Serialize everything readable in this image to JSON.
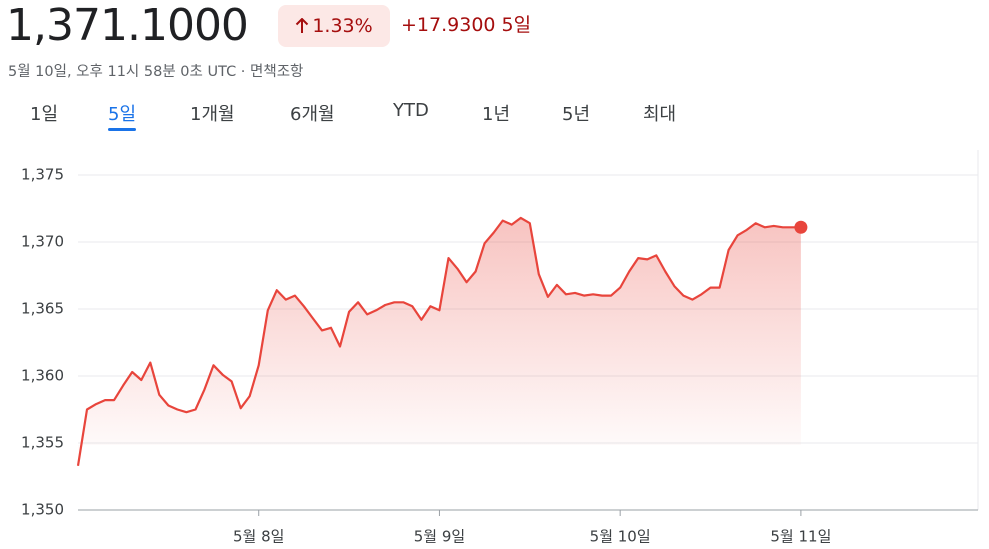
{
  "header": {
    "price": "1,371.1000",
    "change_percent": "1.33%",
    "change_absolute": "+17.9300",
    "period": "5일",
    "timestamp": "5월 10일, 오후 11시 58분 0초 UTC · 면책조항",
    "tabs": [
      "1일",
      "5일",
      "1개월",
      "6개월",
      "YTD",
      "1년",
      "5년",
      "최대"
    ],
    "selected_tab": 1
  },
  "chart_data": {
    "type": "line",
    "color": "#e8453c",
    "grid": true,
    "x": [
      0,
      0.05,
      0.1,
      0.15,
      0.2,
      0.25,
      0.3,
      0.35,
      0.4,
      0.45,
      0.5,
      0.55,
      0.6,
      0.65,
      0.7,
      0.75,
      0.8,
      0.85,
      0.9,
      0.95,
      1,
      1.05,
      1.1,
      1.15,
      1.2,
      1.25,
      1.3,
      1.35,
      1.4,
      1.45,
      1.5,
      1.55,
      1.6,
      1.65,
      1.7,
      1.75,
      1.8,
      1.85,
      1.9,
      1.95,
      2,
      2.05,
      2.1,
      2.15,
      2.2,
      2.25,
      2.3,
      2.35,
      2.4,
      2.45,
      2.5,
      2.55,
      2.6,
      2.65,
      2.7,
      2.75,
      2.8,
      2.85,
      2.9,
      2.95,
      3,
      3.05,
      3.1,
      3.15,
      3.2,
      3.25,
      3.3,
      3.35,
      3.4,
      3.45,
      3.5,
      3.55,
      3.6,
      3.65,
      3.7,
      3.75,
      3.8,
      3.85,
      3.9,
      3.95,
      4
    ],
    "values": [
      1353.3,
      1357.5,
      1357.9,
      1358.2,
      1358.2,
      1359.3,
      1360.3,
      1359.7,
      1361.0,
      1358.6,
      1357.8,
      1357.5,
      1357.3,
      1357.5,
      1359.0,
      1360.8,
      1360.1,
      1359.6,
      1357.6,
      1358.5,
      1360.8,
      1364.9,
      1366.4,
      1365.7,
      1366.0,
      1365.2,
      1364.3,
      1363.4,
      1363.6,
      1362.2,
      1364.8,
      1365.5,
      1364.6,
      1364.9,
      1365.3,
      1365.5,
      1365.5,
      1365.2,
      1364.2,
      1365.2,
      1364.9,
      1368.8,
      1368.0,
      1367.0,
      1367.8,
      1369.9,
      1370.7,
      1371.6,
      1371.3,
      1371.8,
      1371.4,
      1367.6,
      1365.9,
      1366.8,
      1366.1,
      1366.2,
      1366.0,
      1366.1,
      1366.0,
      1366.0,
      1366.6,
      1367.8,
      1368.8,
      1368.7,
      1369.0,
      1367.8,
      1366.7,
      1366.0,
      1365.7,
      1366.1,
      1366.6,
      1366.6,
      1369.4,
      1370.5,
      1370.9,
      1371.4,
      1371.1,
      1371.2,
      1371.1,
      1371.1,
      1371.1
    ],
    "xlim": [
      0,
      4.98
    ],
    "xticks": [
      {
        "value": 1,
        "label": "5월 8일"
      },
      {
        "value": 2,
        "label": "5월 9일"
      },
      {
        "value": 3,
        "label": "5월 10일"
      },
      {
        "value": 4,
        "label": "5월 11일"
      }
    ],
    "ylim": [
      1350,
      1375
    ],
    "yticks": [
      {
        "value": 1350,
        "label": "1,350"
      },
      {
        "value": 1355,
        "label": "1,355"
      },
      {
        "value": 1360,
        "label": "1,360"
      },
      {
        "value": 1365,
        "label": "1,365"
      },
      {
        "value": 1370,
        "label": "1,370"
      },
      {
        "value": 1375,
        "label": "1,375"
      }
    ]
  }
}
